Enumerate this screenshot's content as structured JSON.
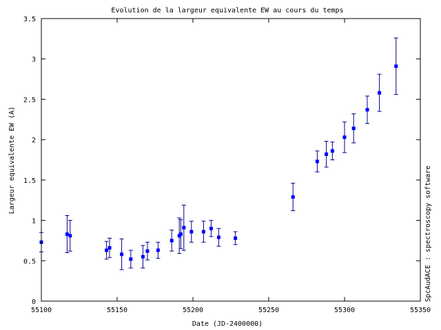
{
  "chart_data": {
    "type": "scatter",
    "title": "Evolution de la largeur equivalente EW au cours du temps",
    "xlabel": "Date (JD-2400000)",
    "ylabel": "Largeur equivalente EW (A)",
    "side_label": "SpcAudACE : spectroscopy software",
    "xlim": [
      55100,
      55350
    ],
    "ylim": [
      0,
      3.5
    ],
    "xticks": [
      55100,
      55150,
      55200,
      55250,
      55300,
      55350
    ],
    "yticks": [
      0,
      0.5,
      1,
      1.5,
      2,
      2.5,
      3,
      3.5
    ],
    "xtick_labels": [
      "55100",
      "55150",
      "55200",
      "55250",
      "55300",
      "55350"
    ],
    "ytick_labels": [
      "0",
      "0.5",
      "1",
      "1.5",
      "2",
      "2.5",
      "3",
      "3.5"
    ],
    "grid": false,
    "marker_color": "#0000ff",
    "error_bar_color": "#00008b",
    "points": [
      {
        "x": 55100,
        "y": 0.73,
        "err": 0.12
      },
      {
        "x": 55117,
        "y": 0.83,
        "err": 0.23
      },
      {
        "x": 55119,
        "y": 0.81,
        "err": 0.19
      },
      {
        "x": 55143,
        "y": 0.63,
        "err": 0.11
      },
      {
        "x": 55145,
        "y": 0.66,
        "err": 0.12
      },
      {
        "x": 55153,
        "y": 0.58,
        "err": 0.19
      },
      {
        "x": 55159,
        "y": 0.52,
        "err": 0.11
      },
      {
        "x": 55167,
        "y": 0.55,
        "err": 0.14
      },
      {
        "x": 55170,
        "y": 0.62,
        "err": 0.11
      },
      {
        "x": 55177,
        "y": 0.63,
        "err": 0.1
      },
      {
        "x": 55186,
        "y": 0.75,
        "err": 0.13
      },
      {
        "x": 55191,
        "y": 0.81,
        "err": 0.22
      },
      {
        "x": 55192,
        "y": 0.83,
        "err": 0.18
      },
      {
        "x": 55194,
        "y": 0.91,
        "err": 0.28
      },
      {
        "x": 55199,
        "y": 0.86,
        "err": 0.13
      },
      {
        "x": 55207,
        "y": 0.86,
        "err": 0.13
      },
      {
        "x": 55212,
        "y": 0.9,
        "err": 0.1
      },
      {
        "x": 55217,
        "y": 0.79,
        "err": 0.11
      },
      {
        "x": 55228,
        "y": 0.78,
        "err": 0.08
      },
      {
        "x": 55266,
        "y": 1.29,
        "err": 0.17
      },
      {
        "x": 55282,
        "y": 1.73,
        "err": 0.13
      },
      {
        "x": 55288,
        "y": 1.82,
        "err": 0.16
      },
      {
        "x": 55292,
        "y": 1.86,
        "err": 0.11
      },
      {
        "x": 55300,
        "y": 2.03,
        "err": 0.19
      },
      {
        "x": 55306,
        "y": 2.14,
        "err": 0.18
      },
      {
        "x": 55315,
        "y": 2.37,
        "err": 0.17
      },
      {
        "x": 55323,
        "y": 2.58,
        "err": 0.23
      },
      {
        "x": 55334,
        "y": 2.91,
        "err": 0.35
      }
    ]
  }
}
